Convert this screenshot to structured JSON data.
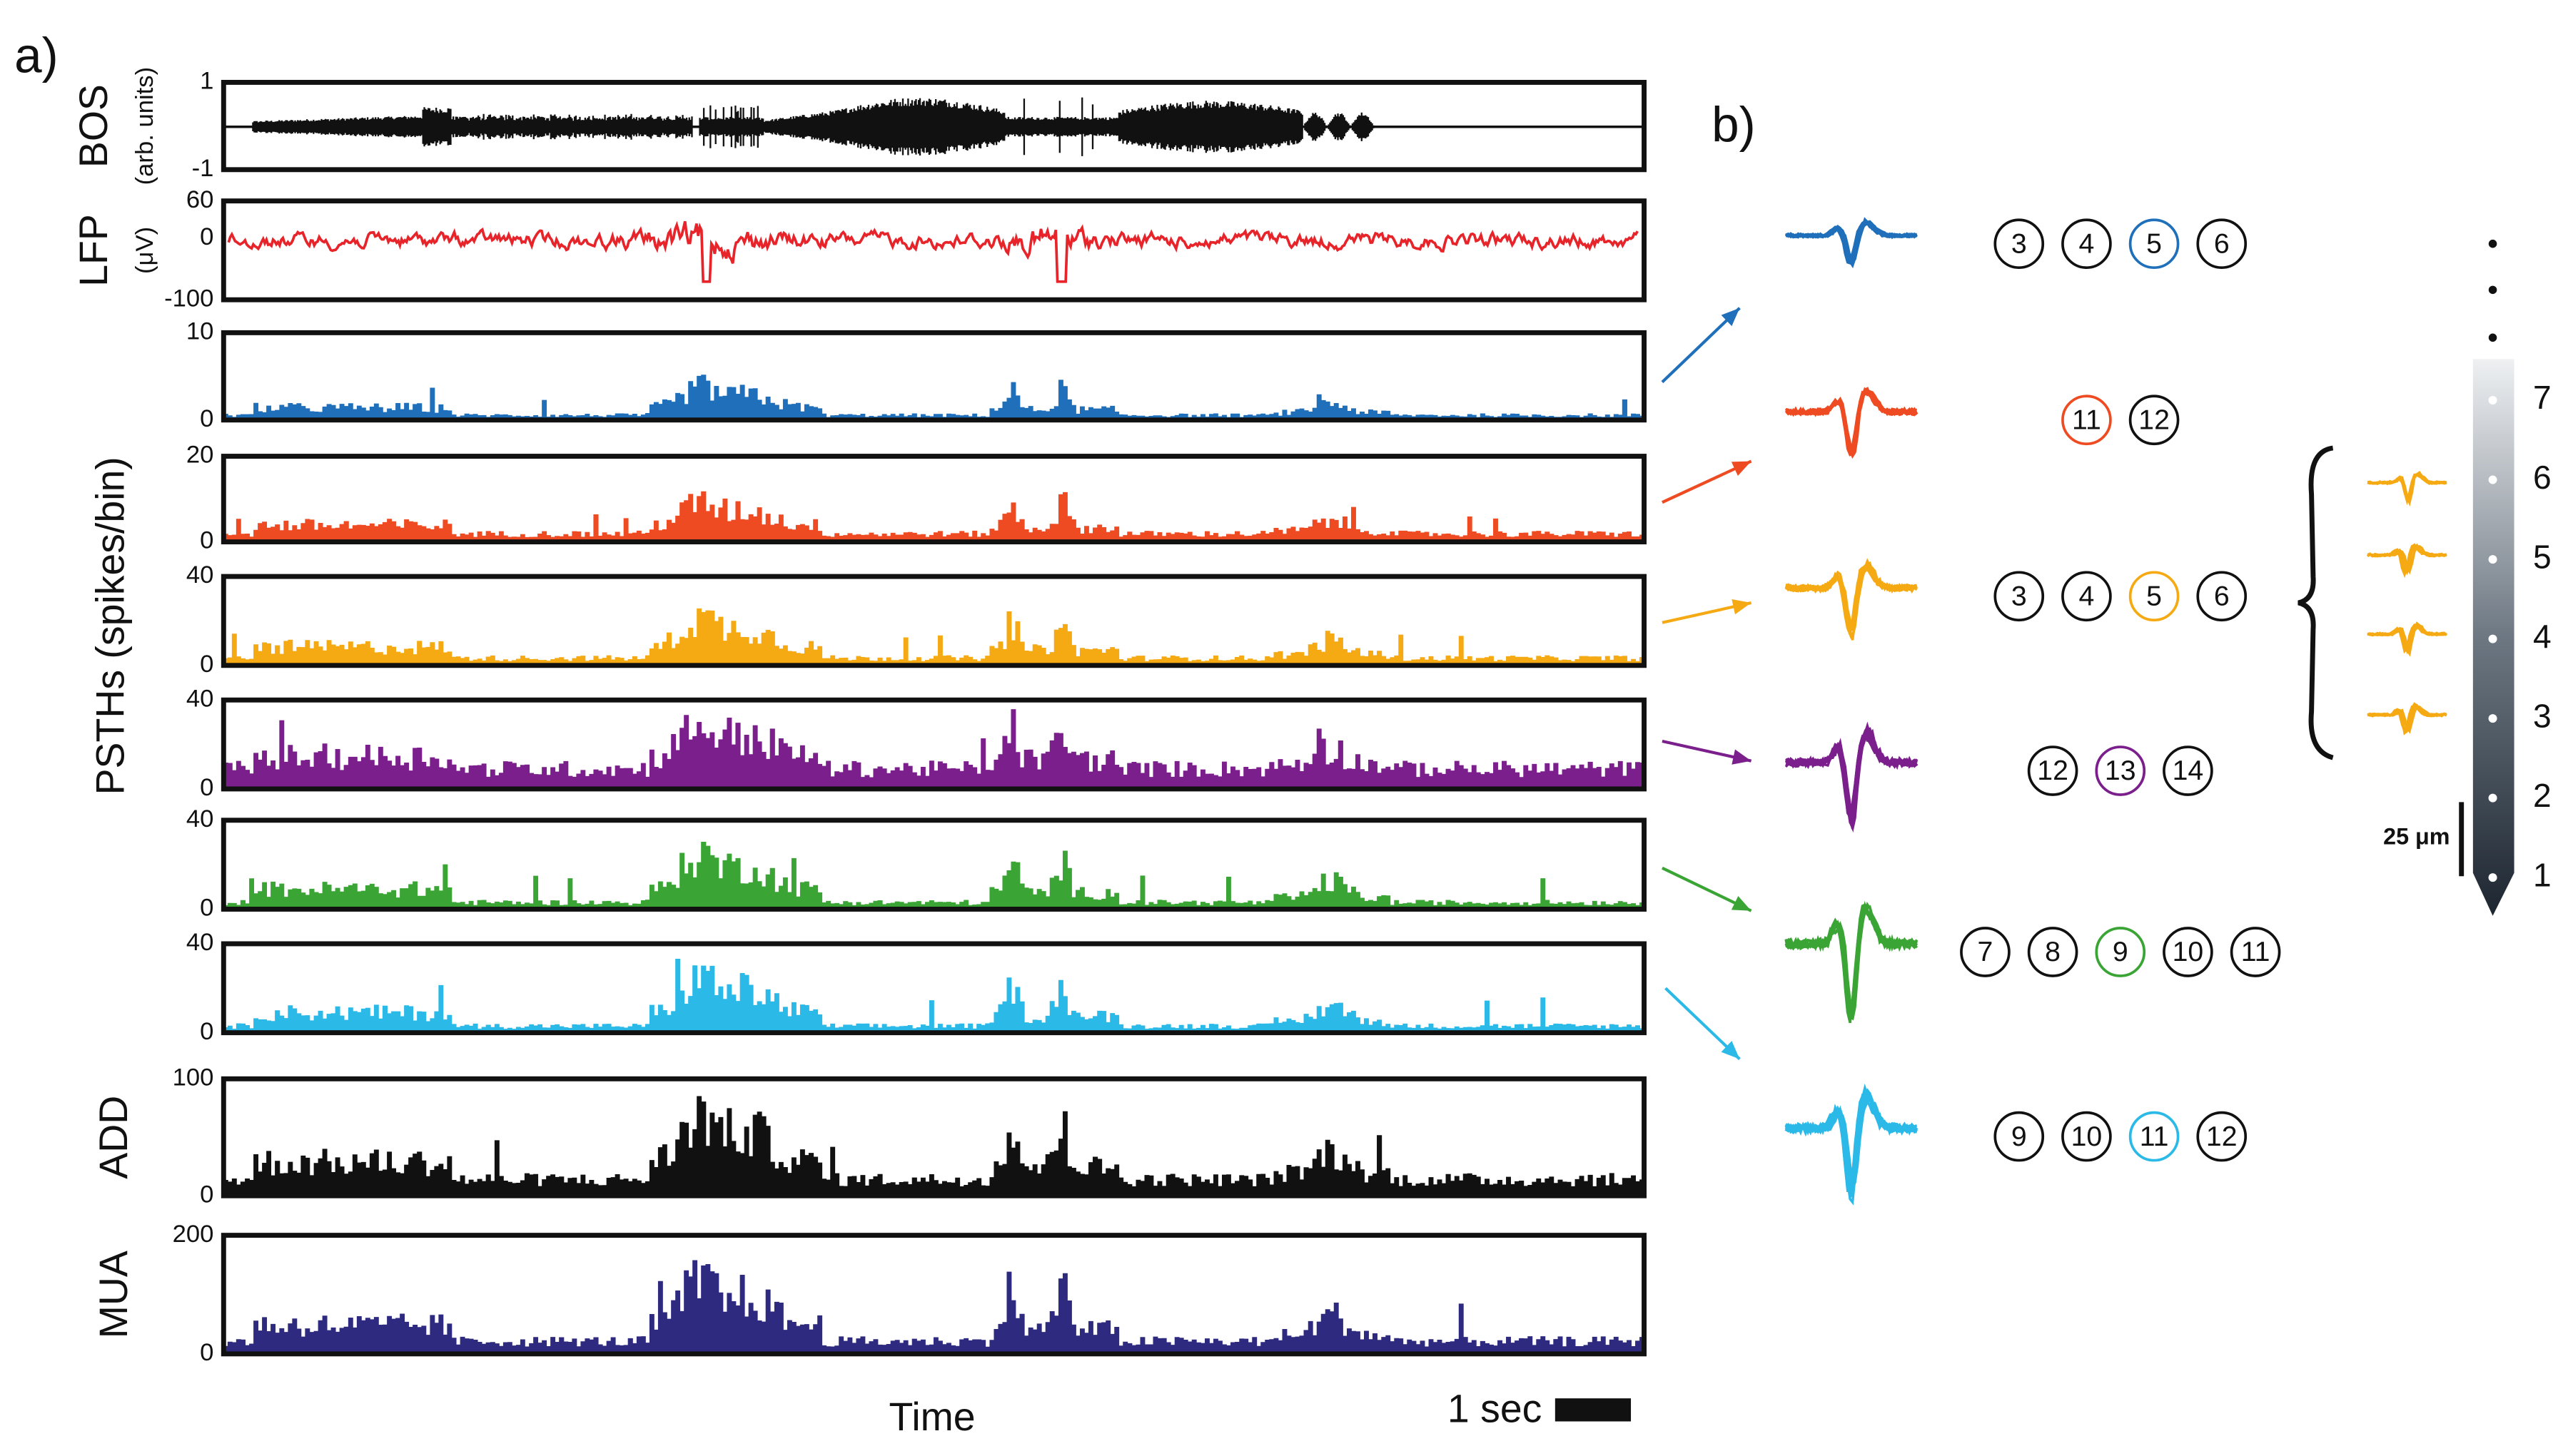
{
  "panel_a": {
    "label": "a)",
    "bos": {
      "label": "BOS",
      "unit": "(arb. units)",
      "yticks": [
        1,
        -1
      ],
      "color": "#111111"
    },
    "lfp": {
      "label": "LFP",
      "unit": "(μV)",
      "yticks": [
        60,
        0,
        -100
      ],
      "color": "#e8242b"
    },
    "psth_label": "PSTHs (spikes/bin)",
    "psths": [
      {
        "yticks": [
          10,
          0
        ],
        "color": "#1f6fba"
      },
      {
        "yticks": [
          20,
          0
        ],
        "color": "#ef4b22"
      },
      {
        "yticks": [
          40,
          0
        ],
        "color": "#f5a912"
      },
      {
        "yticks": [
          40,
          0
        ],
        "color": "#7b1f8c"
      },
      {
        "yticks": [
          40,
          0
        ],
        "color": "#3aa535"
      },
      {
        "yticks": [
          40,
          0
        ],
        "color": "#2bb9e8"
      }
    ],
    "add": {
      "label": "ADD",
      "yticks": [
        100,
        0
      ],
      "color": "#111111"
    },
    "mua": {
      "label": "MUA",
      "yticks": [
        200,
        0
      ],
      "color": "#2e2a7f"
    },
    "x_label": "Time",
    "scale_bar": "1 sec"
  },
  "panel_b": {
    "label": "b)",
    "units": [
      {
        "channels": [
          "3",
          "4",
          "5",
          "6"
        ],
        "highlight": 2,
        "color": "#1f6fba"
      },
      {
        "channels": [
          "11",
          "12"
        ],
        "highlight": 0,
        "color": "#ef4b22"
      },
      {
        "channels": [
          "3",
          "4",
          "5",
          "6"
        ],
        "highlight": 2,
        "color": "#f5a912"
      },
      {
        "channels": [
          "12",
          "13",
          "14"
        ],
        "highlight": 1,
        "color": "#7b1f8c"
      },
      {
        "channels": [
          "7",
          "8",
          "9",
          "10",
          "11"
        ],
        "highlight": 2,
        "color": "#3aa535"
      },
      {
        "channels": [
          "9",
          "10",
          "11",
          "12"
        ],
        "highlight": 2,
        "color": "#2bb9e8"
      }
    ],
    "electrodes": [
      "7",
      "6",
      "5",
      "4",
      "3",
      "2",
      "1"
    ],
    "scale_bar": "25 μm"
  }
}
